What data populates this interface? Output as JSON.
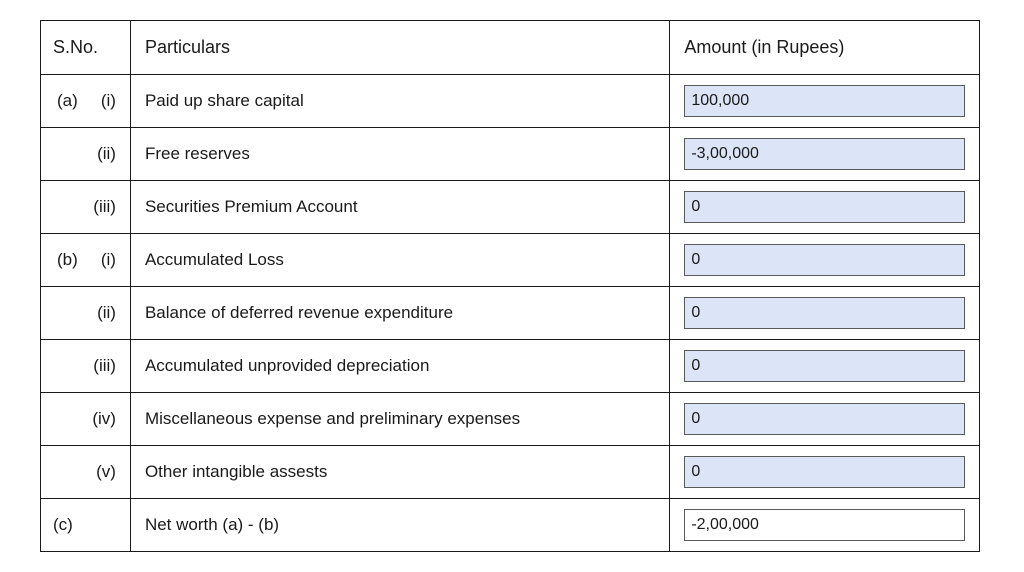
{
  "table": {
    "headers": {
      "sno": "S.No.",
      "particulars": "Particulars",
      "amount": "Amount (in Rupees)"
    },
    "rows": [
      {
        "sno_left": "(a)",
        "sno_right": "(i)",
        "particular": "Paid up share capital",
        "value": "100,000",
        "input_style": "blue"
      },
      {
        "sno_left": "",
        "sno_right": "(ii)",
        "particular": "Free reserves",
        "value": "-3,00,000",
        "input_style": "blue"
      },
      {
        "sno_left": "",
        "sno_right": "(iii)",
        "particular": "Securities Premium Account",
        "value": "0",
        "input_style": "blue"
      },
      {
        "sno_left": "(b)",
        "sno_right": "(i)",
        "particular": "Accumulated Loss",
        "value": "0",
        "input_style": "blue"
      },
      {
        "sno_left": "",
        "sno_right": "(ii)",
        "particular": "Balance of deferred revenue expenditure",
        "value": "0",
        "input_style": "blue"
      },
      {
        "sno_left": "",
        "sno_right": "(iii)",
        "particular": "Accumulated unprovided depreciation",
        "value": "0",
        "input_style": "blue"
      },
      {
        "sno_left": "",
        "sno_right": "(iv)",
        "particular": "Miscellaneous expense and preliminary expenses",
        "value": "0",
        "input_style": "blue"
      },
      {
        "sno_left": "",
        "sno_right": "(v)",
        "particular": "Other intangible assests",
        "value": "0",
        "input_style": "blue"
      },
      {
        "sno_left": "(c)",
        "sno_right": "",
        "particular": "Net worth (a) - (b)",
        "value": "-2,00,000",
        "input_style": "white"
      }
    ]
  }
}
